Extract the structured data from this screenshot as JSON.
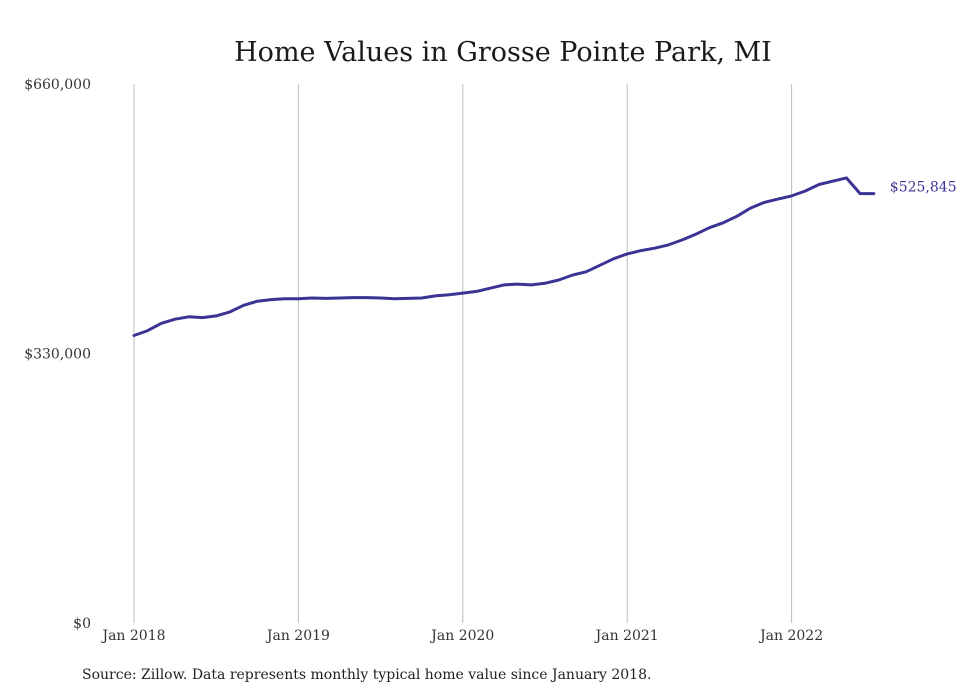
{
  "chart_data": {
    "type": "line",
    "title": "Home Values in Grosse Pointe Park, MI",
    "xlabel": "",
    "ylabel": "",
    "x_unit": "month",
    "x_start": "2018-01",
    "x_end": "2022-07",
    "ylim": [
      0,
      660000
    ],
    "y_ticks": [
      0,
      330000,
      660000
    ],
    "y_tick_labels": [
      "$0",
      "$330,000",
      "$660,000"
    ],
    "x_ticks": [
      "2018-01",
      "2019-01",
      "2020-01",
      "2021-01",
      "2022-01"
    ],
    "x_tick_labels": [
      "Jan 2018",
      "Jan 2019",
      "Jan 2020",
      "Jan 2021",
      "Jan 2022"
    ],
    "grid": "vertical",
    "line_color": "#3b3494",
    "series": [
      {
        "x": [
          "2018-01",
          "2018-02",
          "2018-03",
          "2018-04",
          "2018-05",
          "2018-06",
          "2018-07",
          "2018-08",
          "2018-09",
          "2018-10",
          "2018-11",
          "2018-12",
          "2019-01",
          "2019-02",
          "2019-03",
          "2019-04",
          "2019-05",
          "2019-06",
          "2019-07",
          "2019-08",
          "2019-09",
          "2019-10",
          "2019-11",
          "2019-12",
          "2020-01",
          "2020-02",
          "2020-03",
          "2020-04",
          "2020-05",
          "2020-06",
          "2020-07",
          "2020-08",
          "2020-09",
          "2020-10",
          "2020-11",
          "2020-12",
          "2021-01",
          "2021-02",
          "2021-03",
          "2021-04",
          "2021-05",
          "2021-06",
          "2021-07",
          "2021-08",
          "2021-09",
          "2021-10",
          "2021-11",
          "2021-12",
          "2022-01",
          "2022-02",
          "2022-03",
          "2022-04",
          "2022-05",
          "2022-06",
          "2022-07"
        ],
        "values": [
          352000,
          358000,
          367000,
          372000,
          375000,
          374000,
          376000,
          381000,
          389000,
          394000,
          396000,
          397000,
          397000,
          398000,
          397500,
          398000,
          398500,
          398500,
          398000,
          397000,
          397500,
          398000,
          400500,
          402000,
          404000,
          406000,
          410000,
          414000,
          415000,
          414000,
          416000,
          420000,
          426000,
          430000,
          438000,
          446000,
          452000,
          456000,
          459000,
          463000,
          469000,
          476000,
          484000,
          490000,
          498000,
          508000,
          515000,
          519000,
          523000,
          529000,
          537000,
          541000,
          545000,
          525845,
          525845
        ],
        "end_label": "$525,845"
      }
    ]
  },
  "source_note": "Source: Zillow. Data represents monthly typical home value since January 2018."
}
